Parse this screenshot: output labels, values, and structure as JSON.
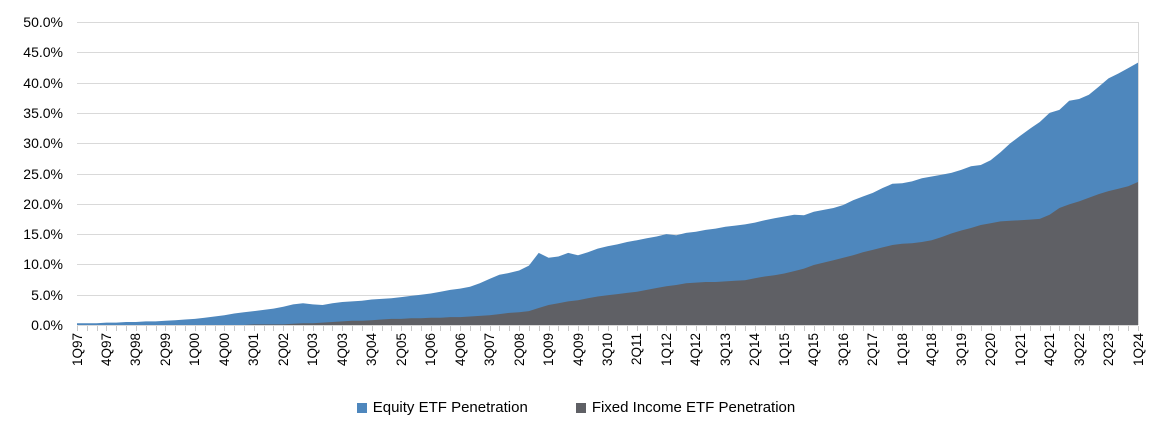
{
  "chart_data": {
    "type": "area",
    "mode": "overlay",
    "title": "",
    "xlabel": "",
    "ylabel": "",
    "ylim": [
      0,
      50
    ],
    "grid": true,
    "legend_position": "bottom",
    "colors": {
      "equity": "#4E87BD",
      "fixed_income": "#5F6065",
      "gridline": "#D9D9D9",
      "tick": "#C9C9C9",
      "text": "#000000"
    },
    "y_tick_values": [
      0,
      5,
      10,
      15,
      20,
      25,
      30,
      35,
      40,
      45,
      50
    ],
    "y_tick_labels": [
      "0.0%",
      "5.0%",
      "10.0%",
      "15.0%",
      "20.0%",
      "25.0%",
      "30.0%",
      "35.0%",
      "40.0%",
      "45.0%",
      "50.0%"
    ],
    "x_label_interval": 3,
    "x_tick_labels_shown": [
      "1Q97",
      "4Q97",
      "3Q98",
      "2Q99",
      "1Q00",
      "4Q00",
      "3Q01",
      "2Q02",
      "1Q03",
      "4Q03",
      "3Q04",
      "2Q05",
      "1Q06",
      "4Q06",
      "3Q07",
      "2Q08",
      "1Q09",
      "4Q09",
      "3Q10",
      "2Q11",
      "1Q12",
      "4Q12",
      "3Q13",
      "2Q14",
      "1Q15",
      "4Q15",
      "3Q16",
      "2Q17",
      "1Q18",
      "4Q18",
      "3Q19",
      "2Q20",
      "1Q21",
      "4Q21",
      "3Q22",
      "2Q23",
      "1Q24"
    ],
    "categories": [
      "1Q97",
      "2Q97",
      "3Q97",
      "4Q97",
      "1Q98",
      "2Q98",
      "3Q98",
      "4Q98",
      "1Q99",
      "2Q99",
      "3Q99",
      "4Q99",
      "1Q00",
      "2Q00",
      "3Q00",
      "4Q00",
      "1Q01",
      "2Q01",
      "3Q01",
      "4Q01",
      "1Q02",
      "2Q02",
      "3Q02",
      "4Q02",
      "1Q03",
      "2Q03",
      "3Q03",
      "4Q03",
      "1Q04",
      "2Q04",
      "3Q04",
      "4Q04",
      "1Q05",
      "2Q05",
      "3Q05",
      "4Q05",
      "1Q06",
      "2Q06",
      "3Q06",
      "4Q06",
      "1Q07",
      "2Q07",
      "3Q07",
      "4Q07",
      "1Q08",
      "2Q08",
      "3Q08",
      "4Q08",
      "1Q09",
      "2Q09",
      "3Q09",
      "4Q09",
      "1Q10",
      "2Q10",
      "3Q10",
      "4Q10",
      "1Q11",
      "2Q11",
      "3Q11",
      "4Q11",
      "1Q12",
      "2Q12",
      "3Q12",
      "4Q12",
      "1Q13",
      "2Q13",
      "3Q13",
      "4Q13",
      "1Q14",
      "2Q14",
      "3Q14",
      "4Q14",
      "1Q15",
      "2Q15",
      "3Q15",
      "4Q15",
      "1Q16",
      "2Q16",
      "3Q16",
      "4Q16",
      "1Q17",
      "2Q17",
      "3Q17",
      "4Q17",
      "1Q18",
      "2Q18",
      "3Q18",
      "4Q18",
      "1Q19",
      "2Q19",
      "3Q19",
      "4Q19",
      "1Q20",
      "2Q20",
      "3Q20",
      "4Q20",
      "1Q21",
      "2Q21",
      "3Q21",
      "4Q21",
      "1Q22",
      "2Q22",
      "3Q22",
      "4Q22",
      "1Q23",
      "2Q23",
      "3Q23",
      "4Q23",
      "1Q24"
    ],
    "series": [
      {
        "name": "Equity ETF Penetration",
        "color": "#4E87BD",
        "values": [
          0.3,
          0.3,
          0.3,
          0.4,
          0.4,
          0.5,
          0.5,
          0.6,
          0.6,
          0.7,
          0.8,
          0.9,
          1.0,
          1.2,
          1.4,
          1.6,
          1.9,
          2.1,
          2.3,
          2.5,
          2.7,
          3.0,
          3.4,
          3.6,
          3.4,
          3.3,
          3.6,
          3.8,
          3.9,
          4.0,
          4.2,
          4.3,
          4.4,
          4.6,
          4.8,
          5.0,
          5.2,
          5.5,
          5.8,
          6.0,
          6.3,
          6.9,
          7.6,
          8.3,
          8.6,
          9.0,
          9.8,
          11.9,
          11.1,
          11.3,
          11.9,
          11.5,
          12.0,
          12.6,
          13.0,
          13.3,
          13.7,
          14.0,
          14.3,
          14.6,
          15.0,
          14.8,
          15.2,
          15.4,
          15.7,
          15.9,
          16.2,
          16.4,
          16.6,
          16.9,
          17.3,
          17.6,
          17.9,
          18.2,
          18.1,
          18.7,
          19.0,
          19.3,
          19.8,
          20.6,
          21.2,
          21.8,
          22.6,
          23.3,
          23.4,
          23.7,
          24.2,
          24.5,
          24.8,
          25.1,
          25.6,
          26.2,
          26.4,
          27.2,
          28.5,
          30.0,
          31.2,
          32.4,
          33.5,
          35.0,
          35.5,
          37.0,
          37.3,
          38.0,
          39.3,
          40.7,
          41.5,
          42.4,
          43.3
        ]
      },
      {
        "name": "Fixed Income ETF Penetration",
        "color": "#5F6065",
        "values": [
          0,
          0,
          0,
          0,
          0,
          0,
          0,
          0,
          0,
          0,
          0,
          0,
          0,
          0,
          0,
          0,
          0,
          0,
          0.1,
          0.1,
          0.1,
          0.1,
          0.2,
          0.3,
          0.3,
          0.4,
          0.5,
          0.6,
          0.7,
          0.7,
          0.8,
          0.9,
          1.0,
          1.0,
          1.1,
          1.1,
          1.2,
          1.2,
          1.3,
          1.3,
          1.4,
          1.5,
          1.6,
          1.8,
          2.0,
          2.1,
          2.3,
          2.8,
          3.3,
          3.6,
          3.9,
          4.1,
          4.4,
          4.7,
          4.9,
          5.1,
          5.3,
          5.5,
          5.8,
          6.1,
          6.4,
          6.6,
          6.9,
          7.0,
          7.1,
          7.1,
          7.2,
          7.3,
          7.4,
          7.7,
          8.0,
          8.2,
          8.5,
          8.9,
          9.3,
          9.9,
          10.3,
          10.7,
          11.1,
          11.5,
          12.0,
          12.4,
          12.8,
          13.2,
          13.4,
          13.5,
          13.7,
          14.0,
          14.5,
          15.1,
          15.6,
          16.0,
          16.5,
          16.8,
          17.1,
          17.2,
          17.3,
          17.4,
          17.5,
          18.2,
          19.3,
          19.9,
          20.4,
          21.0,
          21.6,
          22.1,
          22.5,
          22.9,
          23.6
        ]
      }
    ]
  }
}
